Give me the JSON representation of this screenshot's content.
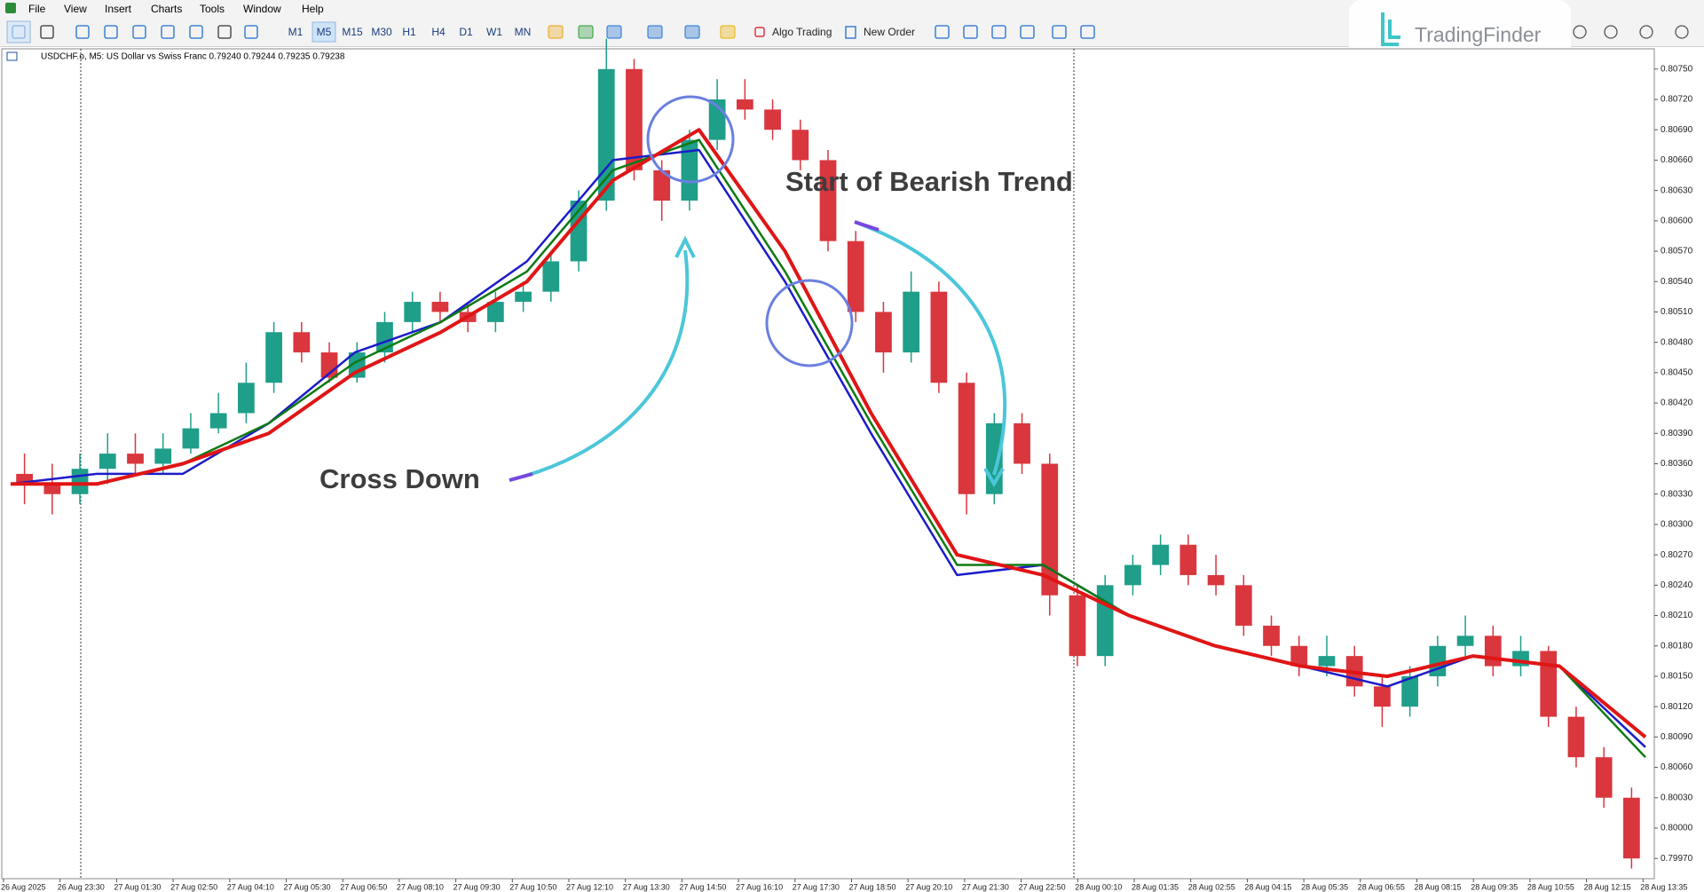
{
  "menu": [
    "File",
    "View",
    "Insert",
    "Charts",
    "Tools",
    "Window",
    "Help"
  ],
  "toolbar": {
    "timeframes": [
      "M1",
      "M5",
      "M15",
      "M30",
      "H1",
      "H4",
      "D1",
      "W1",
      "MN"
    ],
    "algo_trading": "Algo Trading",
    "new_order": "New Order"
  },
  "logo": "TradingFinder",
  "chart": {
    "info": "USDCHF.o, M5:  US Dollar vs Swiss Franc  0.79240 0.79244 0.79235 0.79238",
    "up_color": "#1f9e8a",
    "down_color": "#d9363e",
    "ylim": [
      0.7995,
      0.8077
    ],
    "yticks": [
      {
        "value": 0.7997,
        "label": "0.79970"
      },
      {
        "value": 0.8,
        "label": "0.80000"
      },
      {
        "value": 0.8003,
        "label": "0.80030"
      },
      {
        "value": 0.8006,
        "label": "0.80060"
      },
      {
        "value": 0.8009,
        "label": "0.80090"
      },
      {
        "value": 0.8012,
        "label": "0.80120"
      },
      {
        "value": 0.8015,
        "label": "0.80150"
      },
      {
        "value": 0.8018,
        "label": "0.80180"
      },
      {
        "value": 0.8021,
        "label": "0.80210"
      },
      {
        "value": 0.8024,
        "label": "0.80240"
      },
      {
        "value": 0.8027,
        "label": "0.80270"
      },
      {
        "value": 0.803,
        "label": "0.80300"
      },
      {
        "value": 0.8033,
        "label": "0.80330"
      },
      {
        "value": 0.8036,
        "label": "0.80360"
      },
      {
        "value": 0.8039,
        "label": "0.80390"
      },
      {
        "value": 0.8042,
        "label": "0.80420"
      },
      {
        "value": 0.8045,
        "label": "0.80450"
      },
      {
        "value": 0.8048,
        "label": "0.80480"
      },
      {
        "value": 0.8051,
        "label": "0.80510"
      },
      {
        "value": 0.8054,
        "label": "0.80540"
      },
      {
        "value": 0.8057,
        "label": "0.80570"
      },
      {
        "value": 0.806,
        "label": "0.80600"
      },
      {
        "value": 0.8063,
        "label": "0.80630"
      },
      {
        "value": 0.8066,
        "label": "0.80660"
      },
      {
        "value": 0.8069,
        "label": "0.80690"
      },
      {
        "value": 0.8072,
        "label": "0.80720"
      },
      {
        "value": 0.8075,
        "label": "0.80750"
      }
    ],
    "xlabels": [
      "26 Aug 2025",
      "26 Aug 23:30",
      "27 Aug 01:30",
      "27 Aug 02:50",
      "27 Aug 04:10",
      "27 Aug 05:30",
      "27 Aug 06:50",
      "27 Aug 08:10",
      "27 Aug 09:30",
      "27 Aug 10:50",
      "27 Aug 12:10",
      "27 Aug 13:30",
      "27 Aug 14:50",
      "27 Aug 16:10",
      "27 Aug 17:30",
      "27 Aug 18:50",
      "27 Aug 20:10",
      "27 Aug 21:30",
      "27 Aug 22:50",
      "28 Aug 00:10",
      "28 Aug 01:35",
      "28 Aug 02:55",
      "28 Aug 04:15",
      "28 Aug 05:35",
      "28 Aug 06:55",
      "28 Aug 08:15",
      "28 Aug 09:35",
      "28 Aug 10:55",
      "28 Aug 12:15",
      "28 Aug 13:35"
    ],
    "candles": [
      [
        0.8035,
        0.8037,
        0.8032,
        0.8034
      ],
      [
        0.8034,
        0.8036,
        0.8031,
        0.8033
      ],
      [
        0.8033,
        0.8037,
        0.8032,
        0.80355
      ],
      [
        0.80355,
        0.8039,
        0.8034,
        0.8037
      ],
      [
        0.8037,
        0.8039,
        0.8035,
        0.8036
      ],
      [
        0.8036,
        0.8039,
        0.8035,
        0.80375
      ],
      [
        0.80375,
        0.8041,
        0.8037,
        0.80395
      ],
      [
        0.80395,
        0.8043,
        0.8039,
        0.8041
      ],
      [
        0.8041,
        0.8046,
        0.804,
        0.8044
      ],
      [
        0.8044,
        0.805,
        0.8043,
        0.8049
      ],
      [
        0.8049,
        0.805,
        0.8046,
        0.8047
      ],
      [
        0.8047,
        0.8048,
        0.8044,
        0.80445
      ],
      [
        0.80445,
        0.8048,
        0.8044,
        0.8047
      ],
      [
        0.8047,
        0.8051,
        0.8046,
        0.805
      ],
      [
        0.805,
        0.8053,
        0.8049,
        0.8052
      ],
      [
        0.8052,
        0.8053,
        0.805,
        0.8051
      ],
      [
        0.8051,
        0.8052,
        0.8049,
        0.805
      ],
      [
        0.805,
        0.8053,
        0.8049,
        0.8052
      ],
      [
        0.8052,
        0.8054,
        0.8051,
        0.8053
      ],
      [
        0.8053,
        0.8057,
        0.8052,
        0.8056
      ],
      [
        0.8056,
        0.8063,
        0.8055,
        0.8062
      ],
      [
        0.8062,
        0.8078,
        0.8061,
        0.8075
      ],
      [
        0.8075,
        0.8076,
        0.8064,
        0.8065
      ],
      [
        0.8065,
        0.8066,
        0.806,
        0.8062
      ],
      [
        0.8062,
        0.8069,
        0.8061,
        0.8068
      ],
      [
        0.8068,
        0.8074,
        0.8067,
        0.8072
      ],
      [
        0.8072,
        0.8074,
        0.807,
        0.8071
      ],
      [
        0.8071,
        0.8072,
        0.8068,
        0.8069
      ],
      [
        0.8069,
        0.807,
        0.8065,
        0.8066
      ],
      [
        0.8066,
        0.8067,
        0.8057,
        0.8058
      ],
      [
        0.8058,
        0.8059,
        0.805,
        0.8051
      ],
      [
        0.8051,
        0.8052,
        0.8045,
        0.8047
      ],
      [
        0.8047,
        0.8055,
        0.8046,
        0.8053
      ],
      [
        0.8053,
        0.8054,
        0.8043,
        0.8044
      ],
      [
        0.8044,
        0.8045,
        0.8031,
        0.8033
      ],
      [
        0.8033,
        0.8041,
        0.8032,
        0.804
      ],
      [
        0.804,
        0.8041,
        0.8035,
        0.8036
      ],
      [
        0.8036,
        0.8037,
        0.8021,
        0.8023
      ],
      [
        0.8023,
        0.8024,
        0.8016,
        0.8017
      ],
      [
        0.8017,
        0.8025,
        0.8016,
        0.8024
      ],
      [
        0.8024,
        0.8027,
        0.8023,
        0.8026
      ],
      [
        0.8026,
        0.8029,
        0.8025,
        0.8028
      ],
      [
        0.8028,
        0.8029,
        0.8024,
        0.8025
      ],
      [
        0.8025,
        0.8027,
        0.8023,
        0.8024
      ],
      [
        0.8024,
        0.8025,
        0.8019,
        0.802
      ],
      [
        0.802,
        0.8021,
        0.8017,
        0.8018
      ],
      [
        0.8018,
        0.8019,
        0.8015,
        0.8016
      ],
      [
        0.8016,
        0.8019,
        0.8015,
        0.8017
      ],
      [
        0.8017,
        0.8018,
        0.8013,
        0.8014
      ],
      [
        0.8014,
        0.8015,
        0.801,
        0.8012
      ],
      [
        0.8012,
        0.8016,
        0.8011,
        0.8015
      ],
      [
        0.8015,
        0.8019,
        0.8014,
        0.8018
      ],
      [
        0.8018,
        0.8021,
        0.8017,
        0.8019
      ],
      [
        0.8019,
        0.802,
        0.8015,
        0.8016
      ],
      [
        0.8016,
        0.8019,
        0.8015,
        0.80175
      ],
      [
        0.80175,
        0.8018,
        0.801,
        0.8011
      ],
      [
        0.8011,
        0.8012,
        0.8006,
        0.8007
      ],
      [
        0.8007,
        0.8008,
        0.8002,
        0.8003
      ],
      [
        0.8003,
        0.8004,
        0.7996,
        0.7997
      ]
    ],
    "ma": [
      {
        "color": "#1c1cc8",
        "values": [
          0.8034,
          0.8035,
          0.8035,
          0.804,
          0.8047,
          0.805,
          0.8056,
          0.8066,
          0.8067,
          0.8054,
          0.8039,
          0.8025,
          0.8026,
          0.8021,
          0.8018,
          0.8016,
          0.8014,
          0.8017,
          0.8016,
          0.8008
        ]
      },
      {
        "color": "#0e7a12",
        "values": [
          0.8034,
          0.8034,
          0.8036,
          0.804,
          0.8046,
          0.805,
          0.8055,
          0.8065,
          0.8068,
          0.8055,
          0.804,
          0.8026,
          0.8026,
          0.8021,
          0.8018,
          0.8016,
          0.8015,
          0.8017,
          0.8016,
          0.8007
        ]
      },
      {
        "color": "#e01515",
        "values": [
          0.8034,
          0.8034,
          0.8036,
          0.8039,
          0.8045,
          0.8049,
          0.8054,
          0.8064,
          0.8069,
          0.8057,
          0.8041,
          0.8027,
          0.8025,
          0.8021,
          0.8018,
          0.8016,
          0.8015,
          0.8017,
          0.8016,
          0.8009
        ]
      }
    ],
    "annotations": {
      "trend": "Start of Bearish Trend",
      "cross": "Cross Down"
    }
  }
}
